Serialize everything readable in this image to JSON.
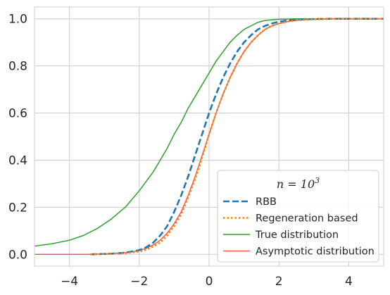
{
  "chart_data": {
    "type": "line",
    "title": "",
    "xlabel": "",
    "ylabel": "",
    "xlim": [
      -5,
      5
    ],
    "ylim": [
      -0.05,
      1.05
    ],
    "xticks": [
      -4,
      -2,
      0,
      2,
      4
    ],
    "xtick_labels": [
      "−4",
      "−2",
      "0",
      "2",
      "4"
    ],
    "yticks": [
      0.0,
      0.2,
      0.4,
      0.6,
      0.8,
      1.0
    ],
    "ytick_labels": [
      "0.0",
      "0.2",
      "0.4",
      "0.6",
      "0.8",
      "1.0"
    ],
    "grid": true,
    "legend": {
      "placement": "lower-right",
      "title_base": "n = 10",
      "title_exponent": "3"
    },
    "series": [
      {
        "name": "RBB",
        "color": "#1f77b4",
        "style": "dashed",
        "x": [
          -3.4,
          -2.8,
          -2.4,
          -2.0,
          -1.8,
          -1.6,
          -1.4,
          -1.2,
          -1.0,
          -0.8,
          -0.6,
          -0.4,
          -0.2,
          0.0,
          0.2,
          0.4,
          0.6,
          0.8,
          1.0,
          1.2,
          1.4,
          1.6,
          1.8,
          2.0,
          2.3,
          2.6,
          3.0,
          3.5,
          4.0,
          5.0
        ],
        "y": [
          0.0,
          0.003,
          0.007,
          0.018,
          0.03,
          0.05,
          0.08,
          0.12,
          0.18,
          0.25,
          0.33,
          0.42,
          0.51,
          0.6,
          0.68,
          0.75,
          0.81,
          0.86,
          0.9,
          0.93,
          0.955,
          0.97,
          0.98,
          0.988,
          0.994,
          0.997,
          0.999,
          1.0,
          1.0,
          1.0
        ]
      },
      {
        "name": "Regeneration based",
        "color": "#ff7f0e",
        "style": "dotted",
        "x": [
          -3.4,
          -2.8,
          -2.4,
          -2.0,
          -1.8,
          -1.6,
          -1.4,
          -1.2,
          -1.0,
          -0.8,
          -0.6,
          -0.4,
          -0.2,
          0.0,
          0.2,
          0.4,
          0.6,
          0.8,
          1.0,
          1.2,
          1.4,
          1.6,
          1.8,
          2.0,
          2.3,
          2.6,
          3.0,
          3.5,
          4.0,
          5.0
        ],
        "y": [
          0.0,
          0.002,
          0.005,
          0.012,
          0.02,
          0.033,
          0.05,
          0.08,
          0.12,
          0.17,
          0.24,
          0.32,
          0.41,
          0.51,
          0.6,
          0.68,
          0.75,
          0.81,
          0.86,
          0.9,
          0.93,
          0.955,
          0.97,
          0.98,
          0.99,
          0.995,
          0.998,
          1.0,
          1.0,
          1.0
        ]
      },
      {
        "name": "True distribution",
        "color": "#2ca02c",
        "style": "solid",
        "x": [
          -5.0,
          -4.5,
          -4.0,
          -3.6,
          -3.2,
          -2.8,
          -2.4,
          -2.0,
          -1.8,
          -1.6,
          -1.4,
          -1.2,
          -1.0,
          -0.8,
          -0.6,
          -0.4,
          -0.2,
          0.0,
          0.2,
          0.4,
          0.6,
          0.8,
          1.0,
          1.2,
          1.4,
          1.6,
          2.0,
          2.5,
          3.0,
          3.5,
          4.0,
          5.0
        ],
        "y": [
          0.035,
          0.045,
          0.06,
          0.08,
          0.11,
          0.15,
          0.2,
          0.27,
          0.31,
          0.35,
          0.4,
          0.45,
          0.51,
          0.56,
          0.62,
          0.67,
          0.72,
          0.77,
          0.82,
          0.86,
          0.9,
          0.93,
          0.955,
          0.97,
          0.985,
          0.993,
          0.998,
          1.0,
          1.0,
          1.0,
          1.0,
          1.0
        ]
      },
      {
        "name": "Asymptotic distribution",
        "color": "#f05a4f",
        "style": "solid",
        "x": [
          -5.0,
          -3.5,
          -3.0,
          -2.5,
          -2.2,
          -2.0,
          -1.8,
          -1.6,
          -1.4,
          -1.2,
          -1.0,
          -0.8,
          -0.6,
          -0.4,
          -0.2,
          0.0,
          0.2,
          0.4,
          0.6,
          0.8,
          1.0,
          1.2,
          1.4,
          1.6,
          1.8,
          2.0,
          2.3,
          2.6,
          3.0,
          3.5,
          4.0,
          5.0
        ],
        "y": [
          0.0,
          0.0,
          0.002,
          0.006,
          0.011,
          0.016,
          0.026,
          0.04,
          0.06,
          0.09,
          0.13,
          0.18,
          0.25,
          0.33,
          0.42,
          0.51,
          0.6,
          0.68,
          0.75,
          0.81,
          0.86,
          0.9,
          0.93,
          0.955,
          0.97,
          0.98,
          0.99,
          0.995,
          0.998,
          1.0,
          1.0,
          1.0
        ]
      }
    ]
  }
}
